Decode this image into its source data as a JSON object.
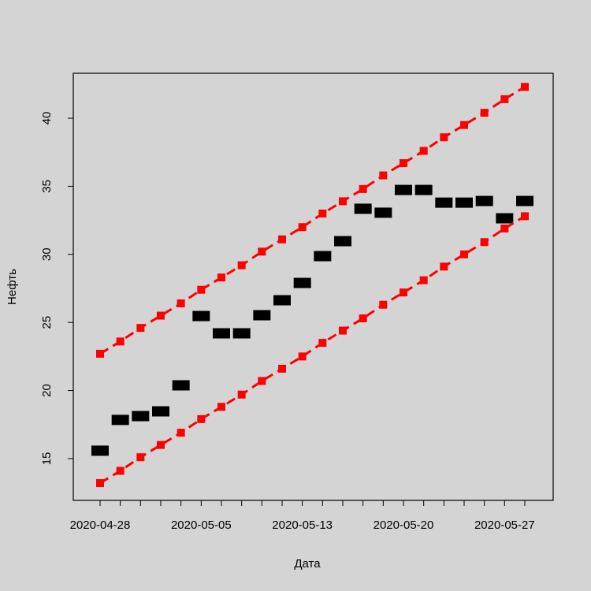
{
  "chart_data": {
    "type": "line",
    "x_label": "Дата",
    "y_label": "Нефть",
    "categories": [
      "2020-04-28",
      null,
      null,
      null,
      null,
      "2020-05-05",
      null,
      null,
      null,
      null,
      "2020-05-13",
      null,
      null,
      null,
      null,
      "2020-05-20",
      null,
      null,
      null,
      null,
      "2020-05-27",
      null
    ],
    "ylim": [
      11.93,
      43.3
    ],
    "yticks": [
      15,
      20,
      25,
      30,
      35,
      40
    ],
    "grid": false,
    "series": [
      {
        "color": "#ff0000",
        "line_style": "dashed",
        "marker": "small-square",
        "values": [
          22.7,
          23.6,
          24.6,
          25.5,
          26.4,
          27.4,
          28.3,
          29.2,
          30.2,
          31.1,
          32.0,
          33.0,
          33.9,
          34.8,
          35.8,
          36.7,
          37.6,
          38.6,
          39.5,
          40.4,
          41.4,
          42.3
        ]
      },
      {
        "color": "#000000",
        "line_style": "none",
        "marker": "wide-rect",
        "values": [
          15.58,
          17.84,
          18.12,
          18.47,
          20.38,
          25.47,
          24.2,
          24.2,
          25.53,
          26.63,
          27.9,
          29.87,
          30.97,
          33.35,
          33.06,
          34.73,
          34.73,
          33.8,
          33.8,
          33.92,
          32.65,
          33.92
        ]
      },
      {
        "color": "#ff0000",
        "line_style": "dashed",
        "marker": "small-square",
        "values": [
          13.2,
          14.1,
          15.1,
          16.0,
          16.9,
          17.9,
          18.8,
          19.7,
          20.7,
          21.6,
          22.5,
          23.5,
          24.4,
          25.3,
          26.3,
          27.2,
          28.1,
          29.1,
          30.0,
          30.9,
          31.9,
          32.8
        ]
      }
    ]
  }
}
